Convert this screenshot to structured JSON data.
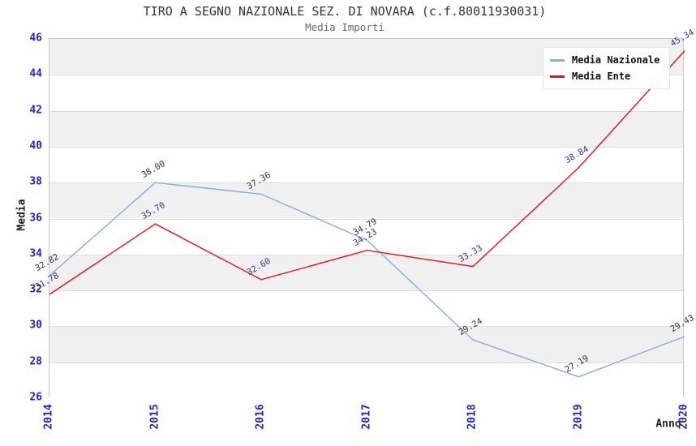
{
  "title": "TIRO A SEGNO NAZIONALE SEZ. DI NOVARA (c.f.80011930031)",
  "subtitle": "Media Importi",
  "chart_data": {
    "type": "line",
    "x": [
      2014,
      2015,
      2016,
      2017,
      2018,
      2019,
      2020
    ],
    "series": [
      {
        "name": "Media Nazionale",
        "color": "#7cb1e2",
        "label_color": "#333333",
        "values": [
          32.82,
          38.0,
          37.36,
          34.79,
          29.24,
          27.19,
          29.43
        ]
      },
      {
        "name": "Media Ente",
        "color": "#ee1111",
        "label_color": "#333399",
        "values": [
          31.78,
          35.7,
          32.6,
          34.23,
          33.33,
          38.84,
          45.34
        ]
      }
    ],
    "xlabel": "Anno",
    "ylabel": "Media",
    "ylim": [
      26,
      46
    ],
    "ytick_step": 2,
    "tick_color": "#2222cc",
    "band_color": "#f0f0f0",
    "grid": true,
    "legend_position": "top-right",
    "point_labels_format": "2-decimals"
  }
}
